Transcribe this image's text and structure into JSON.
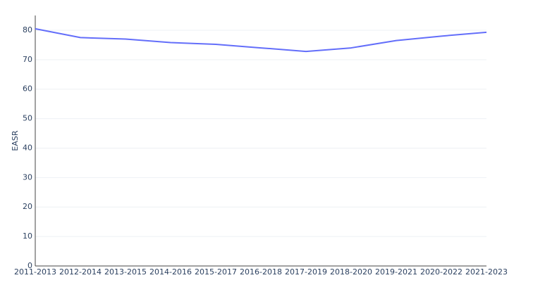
{
  "chart_data": {
    "type": "line",
    "y_label": "EASR",
    "categories": [
      "2011-2013",
      "2012-2014",
      "2013-2015",
      "2014-2016",
      "2015-2017",
      "2016-2018",
      "2017-2019",
      "2018-2020",
      "2019-2021",
      "2020-2022",
      "2021-2023"
    ],
    "values": [
      80.5,
      77.5,
      77,
      75.8,
      75.2,
      74,
      72.8,
      74,
      76.5,
      78,
      79.3
    ],
    "color": "#636efa",
    "ylim": [
      0,
      85
    ],
    "yticks": [
      0,
      10,
      20,
      30,
      40,
      50,
      60,
      70,
      80
    ],
    "grid": true
  }
}
